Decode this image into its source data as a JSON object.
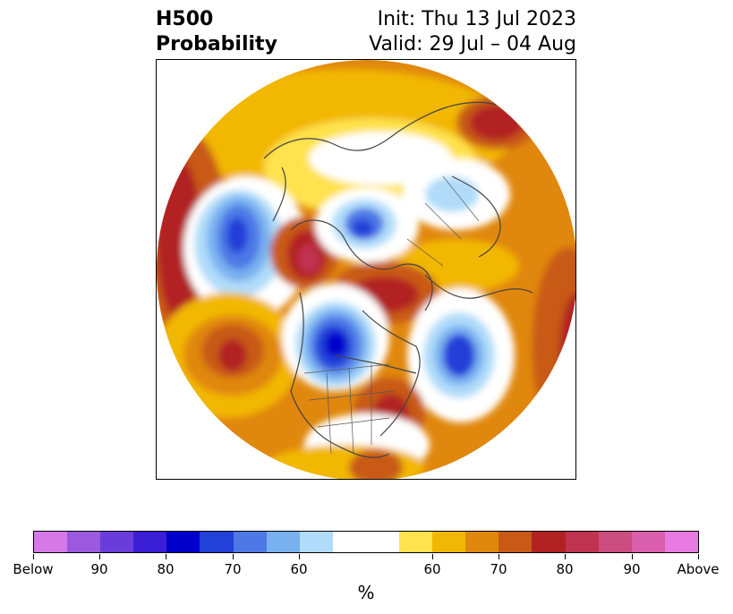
{
  "header": {
    "title_line1": "H500",
    "title_line2": "Probability",
    "init": "Init: Thu 13 Jul 2023",
    "valid": "Valid: 29 Jul – 04 Aug"
  },
  "colorbar": {
    "unit": "%",
    "colors": [
      "#d678e8",
      "#9b59e0",
      "#6a3ddb",
      "#3a1fd6",
      "#0000cc",
      "#2241d8",
      "#4d78e6",
      "#79b1f0",
      "#b0dcf9",
      "#ffffff",
      "#ffe24d",
      "#f2b705",
      "#e0870d",
      "#c85a16",
      "#b22222",
      "#c0334f",
      "#cc4d80",
      "#d95fae",
      "#e67ae0"
    ],
    "tick_labels": [
      "Below",
      "90",
      "80",
      "70",
      "60",
      "60",
      "70",
      "80",
      "90",
      "Above"
    ]
  },
  "map": {
    "projection": "north-polar stereographic",
    "anomaly_colors": {
      "strong_above": "#b22222",
      "above": "#c85a16",
      "mod_above": "#e0870d",
      "weak_above": "#f2b705",
      "slight_above": "#ffe24d",
      "neutral": "#ffffff",
      "slight_below": "#b0dcf9",
      "weak_below": "#79b1f0",
      "mod_below": "#4d78e6",
      "below": "#2241d8",
      "strong_below": "#0000cc",
      "extreme_above": "#c0334f"
    }
  }
}
